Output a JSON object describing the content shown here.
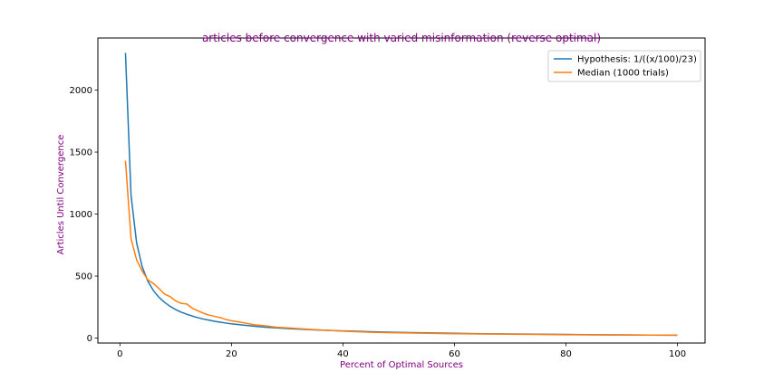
{
  "chart_data": {
    "type": "line",
    "title": "articles before convergence with varied misinformation (reverse optimal)",
    "xlabel": "Percent of Optimal Sources",
    "ylabel": "Articles Until Convergence",
    "label_color": "#800080",
    "xlim": [
      -3.95,
      104.95
    ],
    "ylim": [
      -40,
      2420
    ],
    "xticks": [
      0,
      20,
      40,
      60,
      80,
      100
    ],
    "yticks": [
      0,
      500,
      1000,
      1500,
      2000
    ],
    "legend_position": "upper right",
    "grid": false,
    "series": [
      {
        "name": "Hypothesis: 1/((x/100)/23)",
        "color": "#1f77b4",
        "x": [
          1,
          2,
          3,
          4,
          5,
          6,
          7,
          8,
          9,
          10,
          11,
          12,
          13,
          14,
          15,
          16,
          17,
          18,
          19,
          20,
          22,
          24,
          26,
          28,
          30,
          35,
          40,
          45,
          50,
          55,
          60,
          65,
          70,
          75,
          80,
          85,
          90,
          95,
          100
        ],
        "values": [
          2300,
          1150,
          767,
          575,
          460,
          383,
          329,
          288,
          256,
          230,
          209,
          192,
          177,
          164,
          153,
          144,
          135,
          128,
          121,
          115,
          105,
          96,
          88,
          82,
          77,
          66,
          58,
          51,
          46,
          42,
          38,
          35,
          33,
          31,
          29,
          27,
          26,
          24,
          23
        ]
      },
      {
        "name": "Median (1000 trials)",
        "color": "#ff7f0e",
        "x": [
          1,
          2,
          3,
          4,
          5,
          6,
          7,
          8,
          9,
          10,
          11,
          12,
          13,
          14,
          15,
          16,
          17,
          18,
          19,
          20,
          22,
          24,
          26,
          28,
          30,
          35,
          40,
          45,
          50,
          55,
          60,
          65,
          70,
          75,
          80,
          85,
          90,
          95,
          100
        ],
        "values": [
          1430,
          800,
          630,
          540,
          470,
          440,
          400,
          355,
          335,
          300,
          280,
          275,
          240,
          220,
          200,
          185,
          175,
          165,
          150,
          140,
          125,
          108,
          100,
          88,
          82,
          68,
          56,
          47,
          42,
          38,
          35,
          33,
          31,
          29,
          27,
          26,
          25,
          24,
          23
        ]
      }
    ]
  }
}
